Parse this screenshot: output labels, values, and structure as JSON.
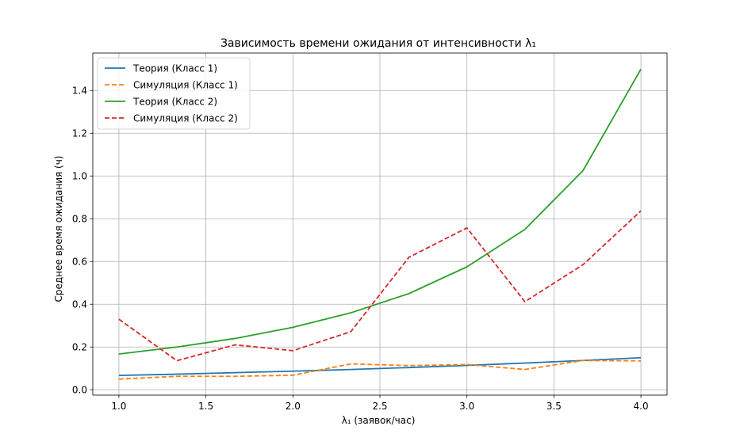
{
  "chart_data": {
    "type": "line",
    "title": "Зависимость времени ожидания от интенсивности λ₁",
    "xlabel": "λ₁ (заявок/час)",
    "ylabel": "Среднее время ожидания (ч)",
    "xlim": [
      0.85,
      4.15
    ],
    "ylim": [
      -0.025,
      1.575
    ],
    "xticks": [
      1.0,
      1.5,
      2.0,
      2.5,
      3.0,
      3.5,
      4.0
    ],
    "xtick_labels": [
      "1.0",
      "1.5",
      "2.0",
      "2.5",
      "3.0",
      "3.5",
      "4.0"
    ],
    "yticks": [
      0.0,
      0.2,
      0.4,
      0.6,
      0.8,
      1.0,
      1.2,
      1.4
    ],
    "ytick_labels": [
      "0.0",
      "0.2",
      "0.4",
      "0.6",
      "0.8",
      "1.0",
      "1.2",
      "1.4"
    ],
    "grid": true,
    "legend_position": "top-left",
    "x": [
      1.0,
      1.333,
      1.667,
      2.0,
      2.333,
      2.667,
      3.0,
      3.333,
      3.667,
      4.0
    ],
    "series": [
      {
        "name": "Теория (Класс 1)",
        "color": "#1f77b4",
        "dash": "solid",
        "values": [
          0.067,
          0.073,
          0.08,
          0.087,
          0.095,
          0.104,
          0.114,
          0.125,
          0.137,
          0.15
        ]
      },
      {
        "name": "Симуляция (Класс 1)",
        "color": "#ff7f0e",
        "dash": "dashed",
        "values": [
          0.05,
          0.063,
          0.063,
          0.068,
          0.121,
          0.113,
          0.118,
          0.095,
          0.137,
          0.135
        ]
      },
      {
        "name": "Теория (Класс 2)",
        "color": "#2ca02c",
        "dash": "solid",
        "values": [
          0.167,
          0.2,
          0.24,
          0.292,
          0.36,
          0.45,
          0.575,
          0.75,
          1.025,
          1.5
        ]
      },
      {
        "name": "Симуляция (Класс 2)",
        "color": "#d62728",
        "dash": "dashed",
        "values": [
          0.33,
          0.136,
          0.21,
          0.183,
          0.272,
          0.62,
          0.757,
          0.412,
          0.585,
          0.837
        ]
      }
    ]
  }
}
